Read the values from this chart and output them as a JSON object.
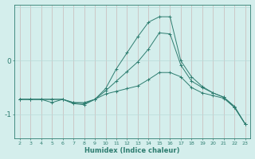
{
  "xlabel": "Humidex (Indice chaleur)",
  "x": [
    2,
    3,
    4,
    5,
    6,
    7,
    8,
    9,
    10,
    11,
    12,
    13,
    14,
    15,
    16,
    17,
    18,
    19,
    20,
    21,
    22,
    23
  ],
  "line_top": [
    -0.72,
    -0.72,
    -0.72,
    -0.72,
    -0.72,
    -0.78,
    -0.78,
    -0.72,
    -0.52,
    -0.15,
    0.15,
    0.45,
    0.72,
    0.82,
    0.82,
    0.0,
    -0.3,
    -0.48,
    -0.6,
    -0.68,
    -0.85,
    -1.18
  ],
  "line_mid": [
    -0.72,
    -0.72,
    -0.72,
    -0.72,
    -0.72,
    -0.78,
    -0.8,
    -0.72,
    -0.56,
    -0.38,
    -0.2,
    -0.02,
    0.22,
    0.52,
    0.5,
    -0.08,
    -0.38,
    -0.5,
    -0.6,
    -0.68,
    -0.87,
    -1.18
  ],
  "line_bot": [
    -0.72,
    -0.72,
    -0.72,
    -0.78,
    -0.72,
    -0.8,
    -0.82,
    -0.72,
    -0.62,
    -0.57,
    -0.52,
    -0.47,
    -0.35,
    -0.22,
    -0.22,
    -0.3,
    -0.5,
    -0.6,
    -0.65,
    -0.7,
    -0.87,
    -1.18
  ],
  "line_color": "#2e7d70",
  "bg_color": "#d4eeec",
  "hgrid_color": "#b8dbd9",
  "vgrid_color": "#c9b8b8",
  "ylim": [
    -1.45,
    1.05
  ],
  "yticks": [
    -1,
    0
  ],
  "xlim": [
    1.5,
    23.5
  ]
}
